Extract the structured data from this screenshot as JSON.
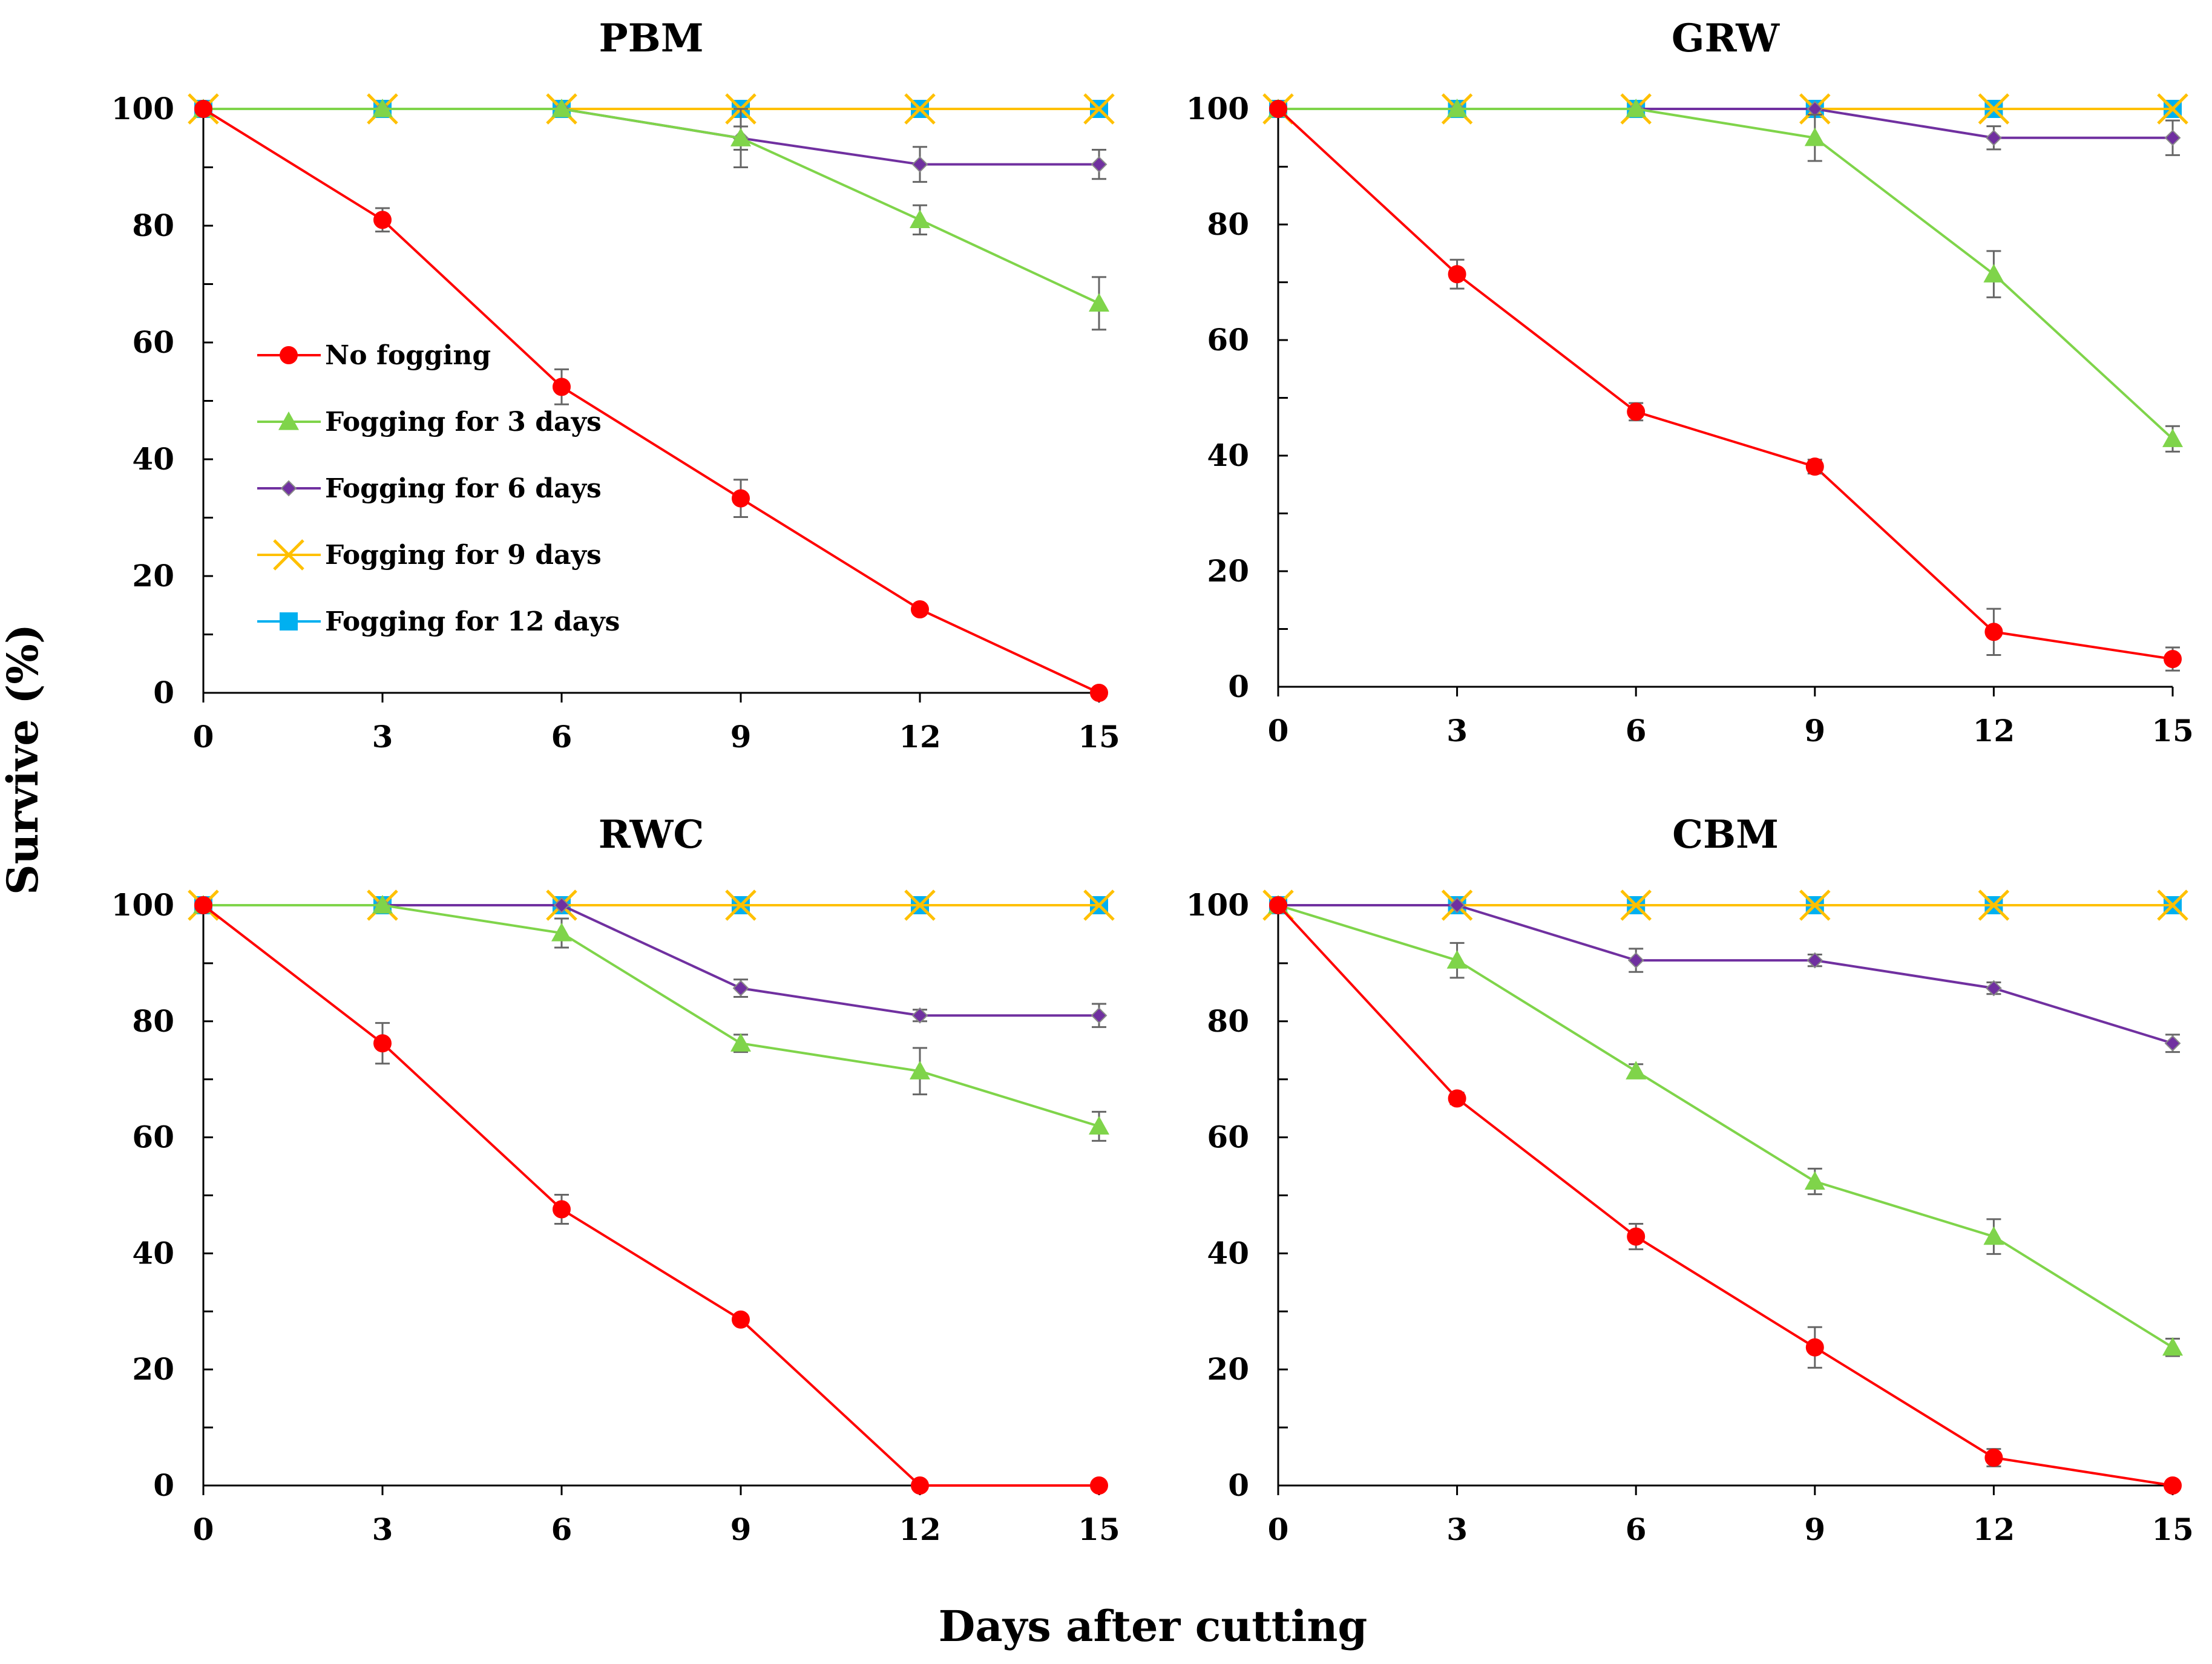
{
  "figure": {
    "ylabel": "Survive (%)",
    "xlabel": "Days after cutting"
  },
  "legend": {
    "position": "inside-left of PBM panel",
    "entries": [
      {
        "label": "No fogging",
        "series": "nofog"
      },
      {
        "label": "Fogging for 3 days",
        "series": "fog3"
      },
      {
        "label": "Fogging for 6 days",
        "series": "fog6"
      },
      {
        "label": "Fogging for 9 days",
        "series": "fog9"
      },
      {
        "label": "Fogging for 12 days",
        "series": "fog12"
      }
    ]
  },
  "series_styles": {
    "nofog": {
      "color": "#ff0000",
      "marker": "circle"
    },
    "fog3": {
      "color": "#7fd44a",
      "marker": "triangle"
    },
    "fog6": {
      "color": "#7030a0",
      "marker": "diamond"
    },
    "fog9": {
      "color": "#ffc000",
      "marker": "x"
    },
    "fog12": {
      "color": "#00b0f0",
      "marker": "square"
    }
  },
  "chart_data": [
    {
      "type": "line",
      "title": "PBM",
      "x": [
        0,
        3,
        6,
        9,
        12,
        15
      ],
      "xticks": [
        "0",
        "3",
        "6",
        "9",
        "12",
        "15"
      ],
      "yticks": [
        "0",
        "20",
        "40",
        "60",
        "80",
        "100"
      ],
      "xlim": [
        0,
        15
      ],
      "ylim": [
        0,
        100
      ],
      "series": [
        {
          "key": "fog12",
          "name": "Fogging for 12 days",
          "values": [
            100,
            100,
            100,
            100,
            100,
            100
          ],
          "errors": [
            0,
            0,
            0,
            0,
            0,
            0
          ]
        },
        {
          "key": "fog9",
          "name": "Fogging for 9 days",
          "values": [
            100,
            100,
            100,
            100,
            100,
            100
          ],
          "errors": [
            0,
            0,
            0,
            0,
            0,
            0
          ]
        },
        {
          "key": "fog6",
          "name": "Fogging for 6 days",
          "values": [
            100,
            100,
            100,
            95,
            90.5,
            90.5
          ],
          "errors": [
            0,
            0,
            0,
            5,
            3,
            2.5
          ]
        },
        {
          "key": "fog3",
          "name": "Fogging for 3 days",
          "values": [
            100,
            100,
            100,
            95,
            81,
            66.7
          ],
          "errors": [
            0,
            0,
            0,
            2,
            2.5,
            4.5
          ]
        },
        {
          "key": "nofog",
          "name": "No fogging",
          "values": [
            100,
            81,
            52.4,
            33.3,
            14.3,
            0
          ],
          "errors": [
            0,
            2,
            3,
            3.2,
            0.8,
            0
          ]
        }
      ]
    },
    {
      "type": "line",
      "title": "GRW",
      "x": [
        0,
        3,
        6,
        9,
        12,
        15
      ],
      "xticks": [
        "0",
        "3",
        "6",
        "9",
        "12",
        "15"
      ],
      "yticks": [
        "0",
        "20",
        "40",
        "60",
        "80",
        "100"
      ],
      "xlim": [
        0,
        15
      ],
      "ylim": [
        0,
        100
      ],
      "series": [
        {
          "key": "fog12",
          "name": "Fogging for 12 days",
          "values": [
            100,
            100,
            100,
            100,
            100,
            100
          ],
          "errors": [
            0,
            0,
            0,
            0,
            0,
            0
          ]
        },
        {
          "key": "fog9",
          "name": "Fogging for 9 days",
          "values": [
            100,
            100,
            100,
            100,
            100,
            100
          ],
          "errors": [
            0,
            0,
            0,
            0,
            0,
            0
          ]
        },
        {
          "key": "fog6",
          "name": "Fogging for 6 days",
          "values": [
            100,
            100,
            100,
            100,
            95,
            95
          ],
          "errors": [
            0,
            0,
            0,
            0,
            2,
            3
          ]
        },
        {
          "key": "fog3",
          "name": "Fogging for 3 days",
          "values": [
            100,
            100,
            100,
            95,
            71.4,
            42.9
          ],
          "errors": [
            0,
            0,
            0,
            4,
            4,
            2.2
          ]
        },
        {
          "key": "nofog",
          "name": "No fogging",
          "values": [
            100,
            71.4,
            47.6,
            38.1,
            9.5,
            4.8
          ],
          "errors": [
            0,
            2.5,
            1.5,
            1.2,
            4,
            2
          ]
        }
      ]
    },
    {
      "type": "line",
      "title": "RWC",
      "x": [
        0,
        3,
        6,
        9,
        12,
        15
      ],
      "xticks": [
        "0",
        "3",
        "6",
        "9",
        "12",
        "15"
      ],
      "yticks": [
        "0",
        "20",
        "40",
        "60",
        "80",
        "100"
      ],
      "xlim": [
        0,
        15
      ],
      "ylim": [
        0,
        100
      ],
      "series": [
        {
          "key": "fog12",
          "name": "Fogging for 12 days",
          "values": [
            100,
            100,
            100,
            100,
            100,
            100
          ],
          "errors": [
            0,
            0,
            0,
            0,
            0,
            0
          ]
        },
        {
          "key": "fog9",
          "name": "Fogging for 9 days",
          "values": [
            100,
            100,
            100,
            100,
            100,
            100
          ],
          "errors": [
            0,
            0,
            0,
            0,
            0,
            0
          ]
        },
        {
          "key": "fog6",
          "name": "Fogging for 6 days",
          "values": [
            100,
            100,
            100,
            85.7,
            81,
            81
          ],
          "errors": [
            0,
            0,
            0,
            1.5,
            1,
            2
          ]
        },
        {
          "key": "fog3",
          "name": "Fogging for 3 days",
          "values": [
            100,
            100,
            95.2,
            76.2,
            71.4,
            61.9
          ],
          "errors": [
            0,
            0,
            2.5,
            1.5,
            4,
            2.5
          ]
        },
        {
          "key": "nofog",
          "name": "No fogging",
          "values": [
            100,
            76.2,
            47.6,
            28.6,
            0,
            0
          ],
          "errors": [
            0,
            3.5,
            2.5,
            0.8,
            0,
            0
          ]
        }
      ]
    },
    {
      "type": "line",
      "title": "CBM",
      "x": [
        0,
        3,
        6,
        9,
        12,
        15
      ],
      "xticks": [
        "0",
        "3",
        "6",
        "9",
        "12",
        "15"
      ],
      "yticks": [
        "0",
        "20",
        "40",
        "60",
        "80",
        "100"
      ],
      "xlim": [
        0,
        15
      ],
      "ylim": [
        0,
        100
      ],
      "series": [
        {
          "key": "fog12",
          "name": "Fogging for 12 days",
          "values": [
            100,
            100,
            100,
            100,
            100,
            100
          ],
          "errors": [
            0,
            0,
            0,
            0,
            0,
            0
          ]
        },
        {
          "key": "fog9",
          "name": "Fogging for 9 days",
          "values": [
            100,
            100,
            100,
            100,
            100,
            100
          ],
          "errors": [
            0,
            0,
            0,
            0,
            0,
            0
          ]
        },
        {
          "key": "fog6",
          "name": "Fogging for 6 days",
          "values": [
            100,
            100,
            90.5,
            90.5,
            85.7,
            76.2
          ],
          "errors": [
            0,
            0,
            2,
            1,
            1,
            1.5
          ]
        },
        {
          "key": "fog3",
          "name": "Fogging for 3 days",
          "values": [
            100,
            90.5,
            71.4,
            52.4,
            42.9,
            23.8
          ],
          "errors": [
            0,
            3,
            1.2,
            2.2,
            3,
            1.5
          ]
        },
        {
          "key": "nofog",
          "name": "No fogging",
          "values": [
            100,
            66.7,
            42.9,
            23.8,
            4.8,
            0
          ],
          "errors": [
            0,
            1,
            2.2,
            3.5,
            1.5,
            0
          ]
        }
      ]
    }
  ]
}
